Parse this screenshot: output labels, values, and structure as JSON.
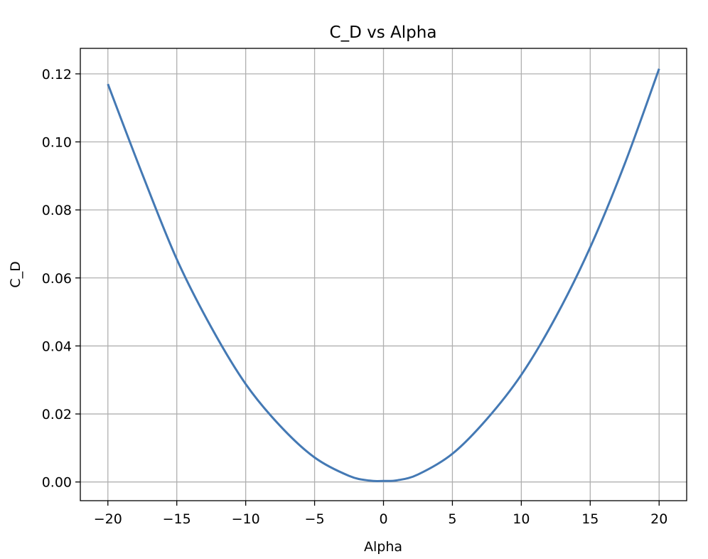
{
  "chart_data": {
    "type": "line",
    "title": "C_D vs Alpha",
    "xlabel": "Alpha",
    "ylabel": "C_D",
    "xlim": [
      -22,
      22
    ],
    "ylim": [
      -0.0055,
      0.1275
    ],
    "xticks": [
      -20,
      -15,
      -10,
      -5,
      0,
      5,
      10,
      15,
      20
    ],
    "xtick_labels": [
      "−20",
      "−15",
      "−10",
      "−5",
      "0",
      "5",
      "10",
      "15",
      "20"
    ],
    "yticks": [
      0.0,
      0.02,
      0.04,
      0.06,
      0.08,
      0.1,
      0.12
    ],
    "ytick_labels": [
      "0.00",
      "0.02",
      "0.04",
      "0.06",
      "0.08",
      "0.10",
      "0.12"
    ],
    "grid": true,
    "line_color": "#4479b4",
    "series": [
      {
        "x": [
          -20,
          -17.5,
          -15,
          -12.5,
          -10,
          -7.5,
          -5,
          -2.5,
          -1,
          0,
          1,
          2.5,
          5,
          7.5,
          10,
          12.5,
          15,
          17.5,
          20
        ],
        "y": [
          0.117,
          0.0905,
          0.0655,
          0.0455,
          0.0288,
          0.0165,
          0.0072,
          0.0018,
          0.0004,
          0.0003,
          0.0005,
          0.0022,
          0.0083,
          0.0185,
          0.0315,
          0.0485,
          0.069,
          0.0935,
          0.1215
        ]
      }
    ]
  }
}
